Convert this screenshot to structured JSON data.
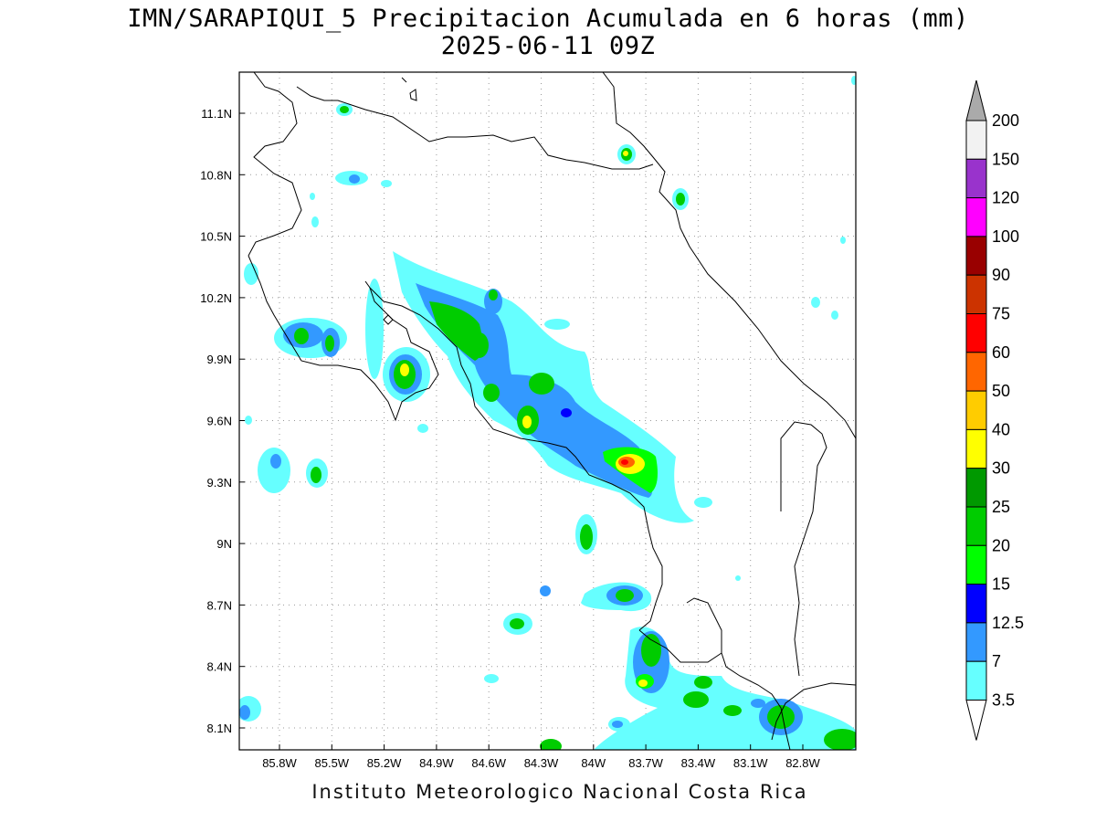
{
  "title": {
    "line1": "IMN/SARAPIQUI_5 Precipitacion Acumulada en 6 horas (mm)",
    "line2": "2025-06-11 09Z"
  },
  "credit": "Instituto Meteorologico Nacional Costa Rica",
  "map": {
    "lon_range": [
      -86.0,
      -83.0
    ],
    "lat_range": [
      8.0,
      11.3
    ],
    "lon_ticks": [
      "85.8W",
      "85.5W",
      "85.2W",
      "84.9W",
      "84.6W",
      "84.3W",
      "84W",
      "83.7W",
      "83.4W",
      "83.1W",
      "82.8W"
    ],
    "lat_ticks": [
      "11.1N",
      "10.8N",
      "10.5N",
      "10.2N",
      "9.9N",
      "9.6N",
      "9.3N",
      "9N",
      "8.7N",
      "8.4N",
      "8.1N"
    ],
    "grid": "dotted"
  },
  "colorbar": {
    "levels": [
      "200",
      "150",
      "120",
      "100",
      "90",
      "75",
      "60",
      "50",
      "40",
      "30",
      "25",
      "20",
      "15",
      "12.5",
      "7",
      "3.5"
    ],
    "colors": [
      "#f2f2f2",
      "#9933cc",
      "#ff00ff",
      "#990000",
      "#cc3300",
      "#ff0000",
      "#ff6600",
      "#ffcc00",
      "#ffff00",
      "#009900",
      "#00cc00",
      "#00ff00",
      "#0000ff",
      "#3399ff",
      "#66ffff"
    ],
    "over_color": "#aaaaaa",
    "under_color": "#ffffff"
  }
}
